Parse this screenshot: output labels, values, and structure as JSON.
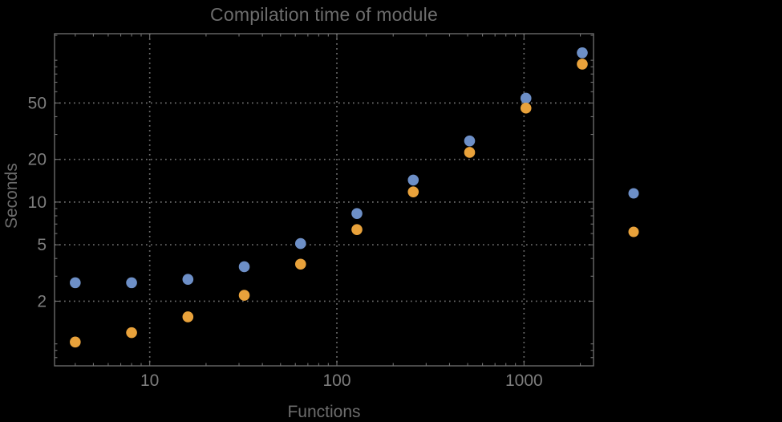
{
  "colors": {
    "background": "#000000",
    "frame": "#717171",
    "grid": "#6e6e6e",
    "tick_label": "#7d7d7d",
    "title_text": "#6d6d6d",
    "series_blue": "#6d8fc7",
    "series_orange": "#e9a23b"
  },
  "chart_data": {
    "type": "scatter",
    "title": "Compilation time of module",
    "xlabel": "Functions",
    "ylabel": "Seconds",
    "x_scale": "log",
    "y_scale": "log",
    "x_range": [
      3.1,
      2352
    ],
    "y_range": [
      0.7,
      154
    ],
    "grid": {
      "style": "dotted",
      "x_values": [
        10,
        100,
        1000
      ],
      "y_values": [
        2,
        5,
        10,
        20,
        50
      ]
    },
    "x_axis": {
      "major_ticks": [
        10,
        100,
        1000
      ],
      "major_labels": [
        "10",
        "100",
        "1000"
      ],
      "minor_ticks": [
        4,
        5,
        6,
        7,
        8,
        9,
        20,
        30,
        40,
        50,
        60,
        70,
        80,
        90,
        200,
        300,
        400,
        500,
        600,
        700,
        800,
        900,
        2000
      ]
    },
    "y_axis": {
      "major_ticks": [
        2,
        5,
        10,
        20,
        50
      ],
      "major_labels": [
        "2",
        "5",
        "10",
        "20",
        "50"
      ],
      "minor_ticks": [
        0.8,
        0.9,
        1,
        3,
        4,
        6,
        7,
        8,
        9,
        30,
        40,
        60,
        70,
        80,
        90,
        100,
        150
      ]
    },
    "x": [
      4,
      8,
      16,
      32,
      64,
      128,
      256,
      512,
      1024,
      2048
    ],
    "series": [
      {
        "name": "series-blue",
        "color": "#6d8fc7",
        "values": [
          2.7,
          2.7,
          2.85,
          3.5,
          5.1,
          8.3,
          14.3,
          27,
          54,
          113
        ]
      },
      {
        "name": "series-orange",
        "color": "#e9a23b",
        "values": [
          1.03,
          1.2,
          1.55,
          2.2,
          3.65,
          6.4,
          11.8,
          22.4,
          46,
          94
        ]
      }
    ],
    "legend": {
      "position": "outside-right",
      "entries": [
        {
          "label": "",
          "marker_color": "#6d8fc7"
        },
        {
          "label": "",
          "marker_color": "#e9a23b"
        }
      ]
    }
  }
}
